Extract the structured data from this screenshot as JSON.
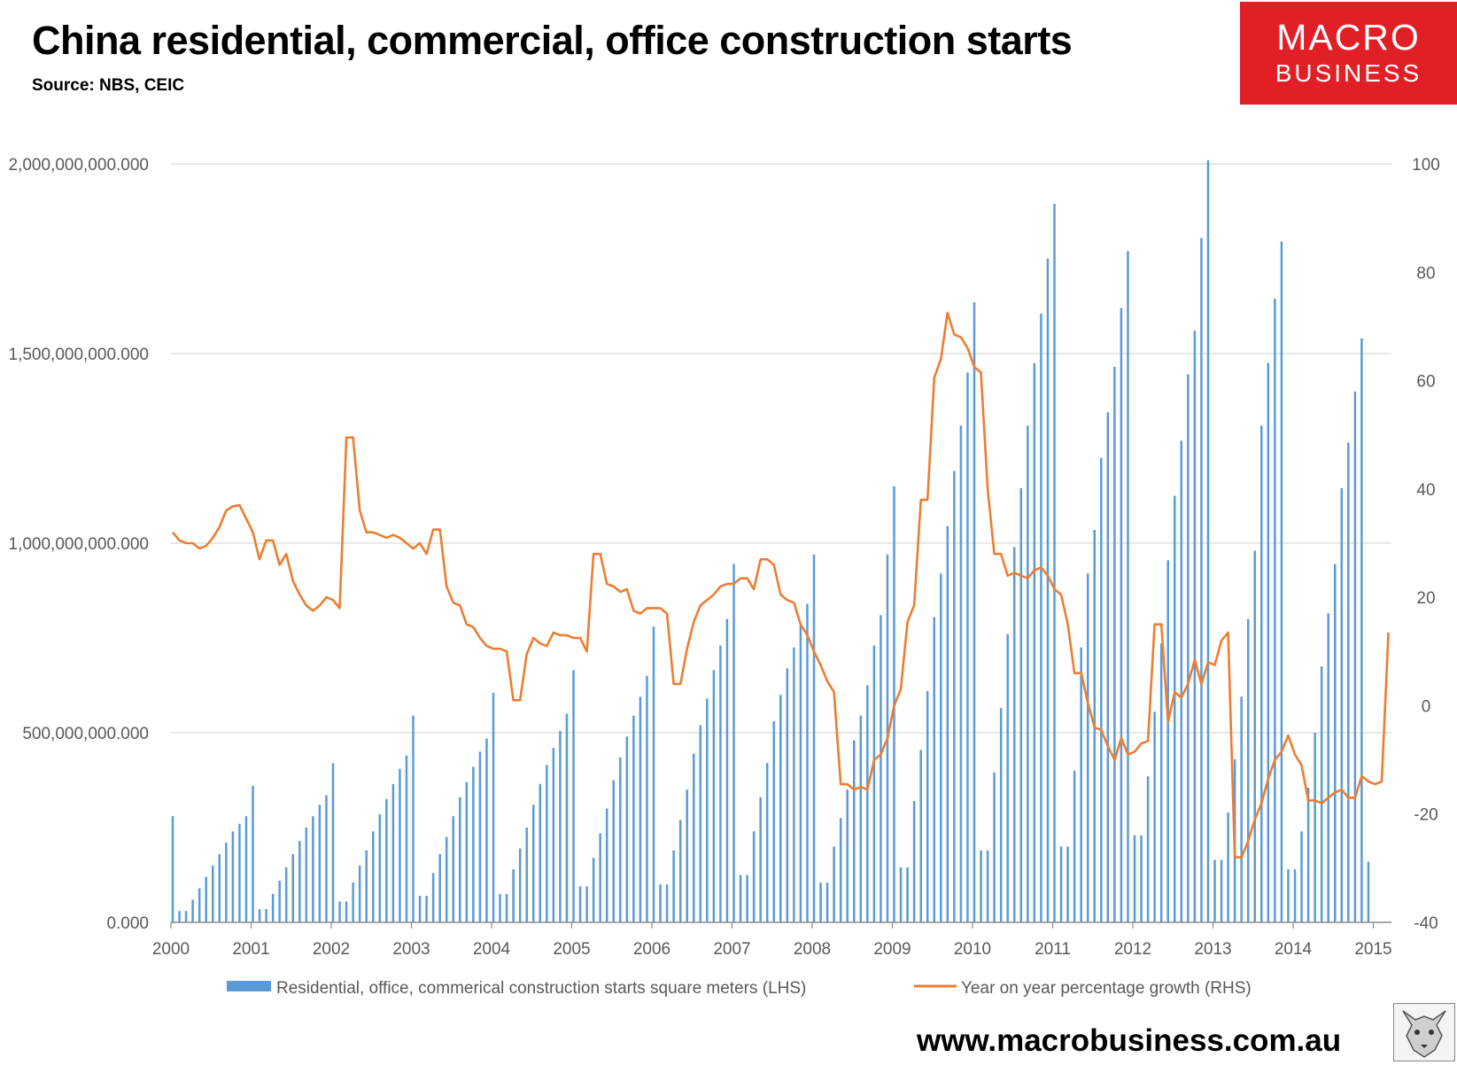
{
  "header": {
    "title": "China residential, commercial, office construction starts",
    "source": "Source: NBS, CEIC",
    "logo_line1": "MACRO",
    "logo_line2": "BUSINESS",
    "website": "www.macrobusiness.com.au"
  },
  "colors": {
    "bar": "#5b9bd5",
    "line": "#ed7d31",
    "grid": "#d9d9d9",
    "logo_bg": "#e21f26"
  },
  "chart_data": {
    "type": "bar+line",
    "title": "China residential, commercial, office construction starts",
    "x_tick_labels": [
      "2000",
      "2001",
      "2002",
      "2003",
      "2004",
      "2005",
      "2006",
      "2007",
      "2008",
      "2009",
      "2010",
      "2011",
      "2012",
      "2013",
      "2014",
      "2015"
    ],
    "left_axis": {
      "ylim": [
        0,
        2000000000
      ],
      "tick_values": [
        0,
        500000000,
        1000000000,
        1500000000,
        2000000000
      ],
      "tick_labels": [
        "0.000",
        "500,000,000.000",
        "1,000,000,000.000",
        "1,500,000,000.000",
        "2,000,000,000.000"
      ]
    },
    "right_axis": {
      "ylim": [
        -40,
        100
      ],
      "tick_values": [
        -40,
        -20,
        0,
        20,
        40,
        60,
        80,
        100
      ],
      "tick_labels": [
        "-40",
        "-20",
        "0",
        "20",
        "40",
        "60",
        "80",
        "100"
      ]
    },
    "start_year": 2000,
    "months_per_year": 12,
    "series": [
      {
        "name": "Residential, office, commerical construction starts square meters (LHS)",
        "axis": "left",
        "kind": "bar",
        "values": [
          280000000,
          30000000,
          30000000,
          60000000,
          90000000,
          120000000,
          150000000,
          180000000,
          210000000,
          240000000,
          260000000,
          280000000,
          360000000,
          35000000,
          35000000,
          75000000,
          110000000,
          145000000,
          180000000,
          215000000,
          250000000,
          280000000,
          310000000,
          335000000,
          420000000,
          55000000,
          55000000,
          105000000,
          150000000,
          190000000,
          240000000,
          285000000,
          325000000,
          365000000,
          405000000,
          440000000,
          545000000,
          70000000,
          70000000,
          130000000,
          180000000,
          225000000,
          280000000,
          330000000,
          370000000,
          410000000,
          450000000,
          485000000,
          605000000,
          75000000,
          75000000,
          140000000,
          195000000,
          250000000,
          310000000,
          365000000,
          415000000,
          460000000,
          505000000,
          550000000,
          665000000,
          95000000,
          95000000,
          170000000,
          235000000,
          300000000,
          375000000,
          435000000,
          490000000,
          545000000,
          595000000,
          650000000,
          780000000,
          100000000,
          100000000,
          190000000,
          270000000,
          350000000,
          445000000,
          520000000,
          590000000,
          665000000,
          730000000,
          800000000,
          945000000,
          125000000,
          125000000,
          240000000,
          330000000,
          420000000,
          530000000,
          600000000,
          670000000,
          725000000,
          785000000,
          840000000,
          970000000,
          105000000,
          105000000,
          200000000,
          275000000,
          350000000,
          480000000,
          545000000,
          625000000,
          730000000,
          810000000,
          970000000,
          1150000000,
          145000000,
          145000000,
          320000000,
          455000000,
          610000000,
          805000000,
          920000000,
          1045000000,
          1190000000,
          1310000000,
          1450000000,
          1635000000,
          190000000,
          190000000,
          395000000,
          565000000,
          760000000,
          990000000,
          1145000000,
          1310000000,
          1475000000,
          1605000000,
          1750000000,
          1895000000,
          200000000,
          200000000,
          400000000,
          725000000,
          920000000,
          1035000000,
          1225000000,
          1345000000,
          1465000000,
          1620000000,
          1770000000,
          230000000,
          230000000,
          385000000,
          555000000,
          735000000,
          955000000,
          1125000000,
          1270000000,
          1445000000,
          1560000000,
          1805000000,
          2010000000,
          165000000,
          165000000,
          290000000,
          430000000,
          595000000,
          800000000,
          980000000,
          1310000000,
          1475000000,
          1645000000,
          1795000000,
          140000000,
          140000000,
          240000000,
          355000000,
          500000000,
          675000000,
          815000000,
          945000000,
          1145000000,
          1265000000,
          1400000000,
          1540000000,
          160000000
        ]
      },
      {
        "name": "Year on year percentage growth (RHS)",
        "axis": "right",
        "kind": "line",
        "values": [
          32,
          30.5,
          30,
          30,
          29,
          29.5,
          31,
          33,
          36,
          36.8,
          37,
          34.5,
          32,
          27,
          30.5,
          30.5,
          26,
          28,
          23,
          20.5,
          18.5,
          17.5,
          18.5,
          20,
          19.5,
          18,
          49.5,
          49.5,
          36,
          32,
          32,
          31.5,
          31,
          31.5,
          31,
          30,
          29,
          30,
          28,
          32.5,
          32.5,
          22,
          19,
          18.5,
          15,
          14.5,
          12.5,
          11,
          10.5,
          10.5,
          10,
          1,
          1,
          9.5,
          12.5,
          11.5,
          11,
          13.5,
          13,
          13,
          12.5,
          12.5,
          10,
          28,
          28,
          22.5,
          22,
          21,
          21.5,
          17.5,
          17,
          18,
          18,
          18,
          17,
          4,
          4,
          10.5,
          15.5,
          18.5,
          19.5,
          20.5,
          22,
          22.5,
          22.5,
          23.5,
          23.5,
          21.5,
          27,
          27,
          26,
          20.5,
          19.5,
          19,
          15,
          13,
          10,
          7.5,
          4.5,
          2.5,
          -14.5,
          -14.5,
          -15.5,
          -15,
          -15.5,
          -10,
          -9,
          -6,
          0,
          3,
          15.5,
          18.5,
          38,
          38,
          60.5,
          64,
          72.5,
          68.5,
          68,
          66,
          62.5,
          61.5,
          40,
          28,
          28,
          24,
          24.5,
          24,
          23.5,
          25,
          25.5,
          24,
          21.5,
          20.5,
          15,
          6,
          6,
          0.5,
          -4,
          -4.5,
          -7.5,
          -10,
          -6,
          -9,
          -8.5,
          -7,
          -6.5,
          15,
          15,
          -3,
          2.5,
          1.5,
          4,
          8.5,
          4,
          8,
          7.5,
          12,
          13.5,
          -28,
          -28,
          -25,
          -21,
          -18,
          -13.5,
          -10,
          -8.5,
          -5.5,
          -9,
          -11,
          -17.5,
          -17.5,
          -18,
          -17,
          -16,
          -15.5,
          -17,
          -17,
          -13,
          -14,
          -14.5,
          -14,
          13.5
        ]
      }
    ],
    "legend": {
      "placement": "bottom-center",
      "entries": [
        "Residential, office, commerical construction starts square meters (LHS)",
        "Year on year percentage growth (RHS)"
      ]
    },
    "grid": true
  }
}
